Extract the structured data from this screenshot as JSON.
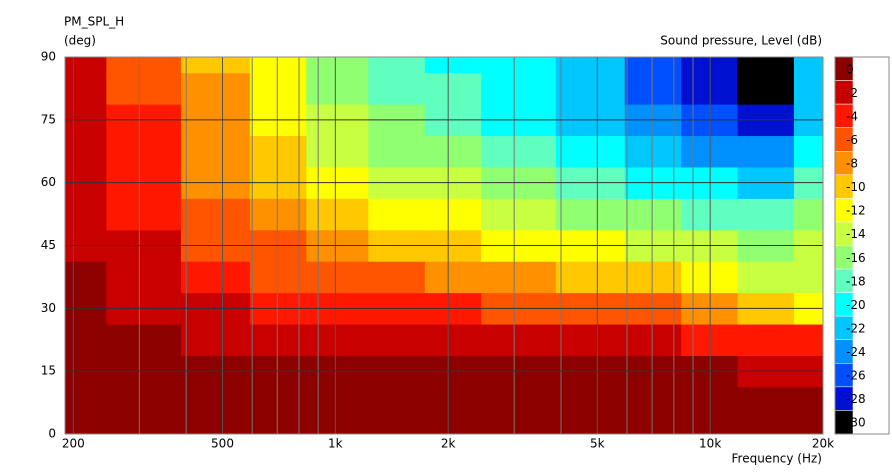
{
  "chart_data": {
    "type": "heatmap",
    "title": "PM_SPL_H",
    "y_label": "(deg)",
    "colorbar_label": "Sound pressure, Level  (dB)",
    "x_label": "Frequency  (Hz)",
    "log_x": true,
    "x": [
      200,
      300,
      500,
      700,
      1000,
      1500,
      2000,
      3000,
      5000,
      7000,
      10000,
      14000,
      20000
    ],
    "y": [
      0,
      7.5,
      15,
      22.5,
      30,
      37.5,
      45,
      52.5,
      60,
      67.5,
      75,
      82.5,
      90
    ],
    "z": [
      [
        0,
        0,
        0,
        0,
        0,
        0,
        0,
        0,
        0,
        0,
        0,
        0,
        0
      ],
      [
        -0.1,
        -0.1,
        -0.2,
        -0.3,
        -0.3,
        -0.4,
        -0.5,
        -0.5,
        -0.6,
        -0.7,
        -0.8,
        -1,
        -1.2
      ],
      [
        -0.4,
        -0.6,
        -0.9,
        -1.2,
        -1.5,
        -1.7,
        -1.8,
        -1.8,
        -1.8,
        -1.8,
        -1.9,
        -2.2,
        -2.6
      ],
      [
        -0.8,
        -1.3,
        -2,
        -2.6,
        -3.1,
        -3.4,
        -3.6,
        -3.6,
        -3.7,
        -3.8,
        -4,
        -4.5,
        -5
      ],
      [
        -1.3,
        -2.2,
        -3.4,
        -4.3,
        -5,
        -5.5,
        -5.9,
        -6.2,
        -6.8,
        -7.5,
        -8.5,
        -10,
        -12
      ],
      [
        -1.8,
        -3,
        -4.8,
        -6,
        -7,
        -7.8,
        -8.6,
        -9.4,
        -10.6,
        -11.5,
        -12.5,
        -14,
        -15
      ],
      [
        -2.3,
        -3.7,
        -6,
        -7.5,
        -9,
        -10.2,
        -11.2,
        -12.3,
        -13.8,
        -14.7,
        -15.5,
        -16,
        -15.5
      ],
      [
        -2.7,
        -4.3,
        -7,
        -9,
        -11,
        -12.5,
        -13.6,
        -14.8,
        -16.5,
        -17.5,
        -18.5,
        -19,
        -17
      ],
      [
        -3.1,
        -5,
        -8,
        -10.3,
        -12.8,
        -14.4,
        -15.6,
        -16.8,
        -18.6,
        -20,
        -21.5,
        -22,
        -19
      ],
      [
        -3.4,
        -5.5,
        -8.8,
        -11.4,
        -14.3,
        -16,
        -17.2,
        -18.6,
        -20.4,
        -22.5,
        -24.5,
        -25,
        -21
      ],
      [
        -3.6,
        -5.9,
        -9.4,
        -12.3,
        -15.5,
        -17.4,
        -18.6,
        -20,
        -22,
        -24.5,
        -27.5,
        -28,
        -22
      ],
      [
        -3.8,
        -6.2,
        -9.8,
        -12.9,
        -16.4,
        -18.3,
        -19.5,
        -21,
        -23,
        -26,
        -29,
        -30.5,
        -23
      ],
      [
        -3.9,
        -6.3,
        -10,
        -13.2,
        -16.8,
        -18.8,
        -20,
        -21.5,
        -23.5,
        -26.5,
        -29.5,
        -31,
        -23.5
      ]
    ],
    "xlim": [
      190,
      20000
    ],
    "xticks": [
      200,
      500,
      {
        "value": 1000,
        "label": "1k"
      },
      {
        "value": 2000,
        "label": "2k"
      },
      {
        "value": 5000,
        "label": "5k"
      },
      {
        "value": 10000,
        "label": "10k"
      },
      {
        "value": 20000,
        "label": "20k"
      }
    ],
    "xminor": [
      300,
      400,
      600,
      700,
      800,
      900,
      3000,
      4000,
      6000,
      7000,
      8000,
      9000,
      30000
    ],
    "ylim": [
      0,
      90
    ],
    "yticks": [
      0,
      15,
      30,
      45,
      60,
      75,
      90
    ],
    "grid": true,
    "levels": [
      0,
      -2,
      -4,
      -6,
      -8,
      -10,
      -12,
      -14,
      -16,
      -18,
      -20,
      -22,
      -24,
      -26,
      -28,
      -30
    ],
    "colors": [
      "#8c0000",
      "#c80000",
      "#ff1800",
      "#ff5400",
      "#ff9000",
      "#ffc800",
      "#ffff00",
      "#c8ff40",
      "#90ff70",
      "#60ffc0",
      "#00ffff",
      "#00c8ff",
      "#0090ff",
      "#0050ff",
      "#0010d0",
      "#000000"
    ]
  }
}
